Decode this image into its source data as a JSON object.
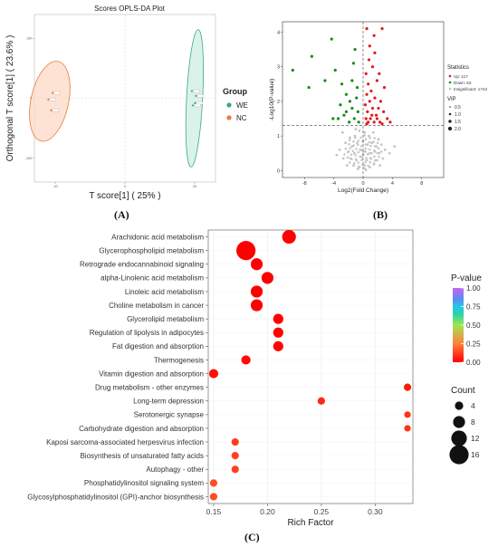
{
  "panels": {
    "a": "(A)",
    "b": "(B)",
    "c": "(C)"
  },
  "chart_data": [
    {
      "id": "A",
      "type": "scatter",
      "title": "Scores OPLS-DA Plot",
      "xlabel": "T score[1] ( 25% )",
      "ylabel": "Orthogonal T score[1] ( 23.6% )",
      "legend": {
        "title": "Group",
        "placement": "right",
        "items": [
          {
            "name": "WE",
            "color": "#3aa889"
          },
          {
            "name": "NC",
            "color": "#ef7a38"
          }
        ]
      },
      "xticks": [
        "-20",
        "0",
        "20"
      ],
      "yticks": [
        "100",
        "0",
        "-100"
      ],
      "groups": [
        {
          "name": "WE",
          "color": "#3aa889",
          "fill": "#cfeee3",
          "ellipse": {
            "cx": 20,
            "cy": 0,
            "rx": 2.3,
            "ry": 115
          },
          "points": [
            [
              19.2,
              12
            ],
            [
              20.4,
              4
            ],
            [
              20.1,
              -8
            ],
            [
              19.5,
              -12
            ]
          ]
        },
        {
          "name": "NC",
          "color": "#ef7a38",
          "fill": "#fbd9c4",
          "ellipse": {
            "cx": -21.6,
            "cy": -5,
            "rx": 5.4,
            "ry": 68
          },
          "points": [
            [
              -20.8,
              9
            ],
            [
              -22,
              -2
            ],
            [
              -21.2,
              -20
            ]
          ]
        }
      ]
    },
    {
      "id": "B",
      "type": "scatter",
      "xlabel": "Log2(Fold Change)",
      "ylabel": "-Log10(P-value)",
      "xticks": [
        "-8",
        "-4",
        "0",
        "4",
        "8"
      ],
      "yticks": [
        "0",
        "1",
        "2",
        "3",
        "4"
      ],
      "xlim": [
        -11,
        11
      ],
      "ylim": [
        -0.2,
        4.3
      ],
      "threshold_y": 1.3,
      "legend": {
        "title": "Statistics",
        "vip_title": "VIP",
        "items": [
          {
            "name": "Up: 117",
            "color": "#e41a1c"
          },
          {
            "name": "Down: 53",
            "color": "#1a8a1a"
          },
          {
            "name": "Insignificant: 1743",
            "color": "#bdbdbd"
          }
        ],
        "vip_sizes": [
          "0.5",
          "1.0",
          "1.5",
          "2.0"
        ]
      },
      "down_points": [
        [
          -9.6,
          2.9
        ],
        [
          -7,
          3.3
        ],
        [
          -7.4,
          2.4
        ],
        [
          -4.3,
          3.8
        ],
        [
          -5.2,
          2.6
        ],
        [
          -3.8,
          2.9
        ],
        [
          -2.9,
          2.5
        ],
        [
          -1.3,
          3.1
        ],
        [
          -1.1,
          3.5
        ],
        [
          -2.3,
          2.2
        ],
        [
          -3.1,
          1.9
        ],
        [
          -1.8,
          2.0
        ],
        [
          -1.5,
          1.8
        ],
        [
          -0.9,
          2.1
        ],
        [
          -0.7,
          1.7
        ],
        [
          -2.6,
          1.6
        ],
        [
          -1.2,
          1.5
        ],
        [
          -3.4,
          1.5
        ],
        [
          -4.1,
          1.5
        ],
        [
          -0.6,
          1.4
        ],
        [
          -1.9,
          1.4
        ],
        [
          -2.3,
          1.7
        ],
        [
          -1.5,
          2.6
        ],
        [
          -0.8,
          2.4
        ]
      ],
      "up_points": [
        [
          0.5,
          4.1
        ],
        [
          2.6,
          4.1
        ],
        [
          1.5,
          3.9
        ],
        [
          0.9,
          3.6
        ],
        [
          1.6,
          3.4
        ],
        [
          0.8,
          3.2
        ],
        [
          1.3,
          3.0
        ],
        [
          0.4,
          2.8
        ],
        [
          2.2,
          2.8
        ],
        [
          1.9,
          2.6
        ],
        [
          0.7,
          2.5
        ],
        [
          1.1,
          2.3
        ],
        [
          2.9,
          2.4
        ],
        [
          0.5,
          2.2
        ],
        [
          1.6,
          2.1
        ],
        [
          0.9,
          2.0
        ],
        [
          2.4,
          2.0
        ],
        [
          0.3,
          1.9
        ],
        [
          1.3,
          1.8
        ],
        [
          2.1,
          1.8
        ],
        [
          0.6,
          1.7
        ],
        [
          1.8,
          1.6
        ],
        [
          2.8,
          1.7
        ],
        [
          0.4,
          1.5
        ],
        [
          1.0,
          1.5
        ],
        [
          1.5,
          1.4
        ],
        [
          2.3,
          1.4
        ],
        [
          3.3,
          1.5
        ],
        [
          0.7,
          1.4
        ],
        [
          1.9,
          1.5
        ],
        [
          0.5,
          1.35
        ],
        [
          1.2,
          1.6
        ],
        [
          2.6,
          1.35
        ],
        [
          3.7,
          1.4
        ]
      ],
      "gray_points": [
        [
          -2.8,
          1.1
        ],
        [
          -1.8,
          0.95
        ],
        [
          -1.1,
          1.0
        ],
        [
          -0.5,
          1.15
        ],
        [
          0.2,
          1.1
        ],
        [
          0.8,
          1.0
        ],
        [
          1.4,
          1.1
        ],
        [
          2.1,
          0.9
        ],
        [
          -2.4,
          0.8
        ],
        [
          -1.5,
          0.7
        ],
        [
          -0.8,
          0.8
        ],
        [
          0,
          0.85
        ],
        [
          0.6,
          0.75
        ],
        [
          1.2,
          0.8
        ],
        [
          1.8,
          0.7
        ],
        [
          2.5,
          0.75
        ],
        [
          -3.2,
          0.6
        ],
        [
          -2.0,
          0.55
        ],
        [
          -1.2,
          0.5
        ],
        [
          -0.4,
          0.6
        ],
        [
          0.3,
          0.55
        ],
        [
          0.9,
          0.5
        ],
        [
          1.6,
          0.55
        ],
        [
          2.2,
          0.5
        ],
        [
          3.0,
          0.6
        ],
        [
          -2.7,
          0.35
        ],
        [
          -1.7,
          0.35
        ],
        [
          -0.9,
          0.3
        ],
        [
          -0.2,
          0.4
        ],
        [
          0.5,
          0.3
        ],
        [
          1.1,
          0.35
        ],
        [
          1.9,
          0.3
        ],
        [
          2.7,
          0.35
        ],
        [
          -2.2,
          0.15
        ],
        [
          -1.3,
          0.15
        ],
        [
          -0.5,
          0.1
        ],
        [
          0.2,
          0.15
        ],
        [
          0.9,
          0.1
        ],
        [
          1.5,
          0.2
        ],
        [
          2.3,
          0.15
        ],
        [
          -0.7,
          0.05
        ],
        [
          0.4,
          0.02
        ],
        [
          3.6,
          0.5
        ],
        [
          -3.6,
          0.45
        ],
        [
          4.3,
          0.7
        ],
        [
          -1.0,
          1.2
        ]
      ]
    },
    {
      "id": "C",
      "type": "scatter",
      "xlabel": "Rich Factor",
      "xticks": [
        0.15,
        0.2,
        0.25,
        0.3
      ],
      "xtick_labels": [
        "0.15",
        "0.20",
        "0.25",
        "0.30"
      ],
      "xlim": [
        0.145,
        0.335
      ],
      "categories": [
        "Arachidonic acid metabolism",
        "Glycerophospholipid metabolism",
        "Retrograde endocannabinoid signaling",
        "alpha-Linolenic acid metabolism",
        "Linoleic acid metabolism",
        "Choline metabolism in cancer",
        "Glycerolipid metabolism",
        "Regulation of lipolysis in adipocytes",
        "Fat digestion and absorption",
        "Thermogenesis",
        "Vitamin digestion and absorption",
        "Drug metabolism - other enzymes",
        "Long-term depression",
        "Serotonergic synapse",
        "Carbohydrate digestion and absorption",
        "Kaposi sarcoma-associated herpesvirus infection",
        "Biosynthesis of unsaturated fatty acids",
        "Autophagy - other",
        "Phosphatidylinositol signaling system",
        "Glycosylphosphatidylinositol (GPI)-anchor biosynthesis"
      ],
      "rich_factor": [
        0.22,
        0.18,
        0.19,
        0.2,
        0.19,
        0.19,
        0.21,
        0.21,
        0.21,
        0.18,
        0.15,
        0.33,
        0.25,
        0.33,
        0.33,
        0.17,
        0.17,
        0.17,
        0.15,
        0.15
      ],
      "count": [
        10,
        16,
        8,
        8,
        8,
        8,
        6,
        6,
        6,
        5,
        5,
        3,
        3,
        2,
        2,
        3,
        3,
        3,
        3,
        3
      ],
      "p_value": [
        0.0,
        0.0,
        0.0,
        0.0,
        0.0,
        0.0,
        0.0,
        0.01,
        0.01,
        0.02,
        0.03,
        0.05,
        0.08,
        0.1,
        0.1,
        0.12,
        0.13,
        0.13,
        0.15,
        0.15
      ],
      "color_legend": {
        "title": "P-value",
        "ticks": [
          "1.00",
          "0.75",
          "0.50",
          "0.25",
          "0.00"
        ]
      },
      "size_legend": {
        "title": "Count",
        "items": [
          "4",
          "8",
          "12",
          "16"
        ]
      }
    }
  ]
}
